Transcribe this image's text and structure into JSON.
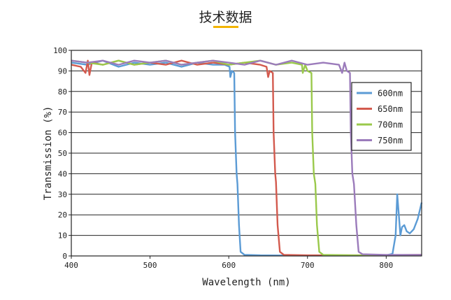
{
  "header": {
    "title": "技术数据",
    "accent_color": "#f2b400"
  },
  "chart_data": {
    "type": "line",
    "xlabel": "Wavelength (nm)",
    "ylabel": "Transmission (%)",
    "xlim": [
      400,
      845
    ],
    "ylim": [
      0,
      100
    ],
    "x_ticks": [
      400,
      500,
      600,
      700,
      800
    ],
    "y_ticks": [
      0,
      10,
      20,
      30,
      40,
      50,
      60,
      70,
      80,
      90,
      100
    ],
    "grid": "horizontal",
    "legend_position": "top-right",
    "series": [
      {
        "name": "600nm",
        "color": "#5b9bd5",
        "cutoff": 607,
        "points": [
          [
            400,
            94
          ],
          [
            420,
            93
          ],
          [
            440,
            95
          ],
          [
            460,
            92
          ],
          [
            480,
            94
          ],
          [
            500,
            93
          ],
          [
            520,
            94
          ],
          [
            540,
            92
          ],
          [
            560,
            94
          ],
          [
            580,
            93
          ],
          [
            595,
            93
          ],
          [
            601,
            92
          ],
          [
            602,
            87
          ],
          [
            604,
            90
          ],
          [
            607,
            89
          ],
          [
            608,
            60
          ],
          [
            610,
            40
          ],
          [
            611,
            35
          ],
          [
            613,
            15
          ],
          [
            615,
            2
          ],
          [
            620,
            0.5
          ],
          [
            640,
            0.3
          ],
          [
            700,
            0.2
          ],
          [
            760,
            0.2
          ],
          [
            800,
            0.3
          ],
          [
            808,
            1
          ],
          [
            812,
            10
          ],
          [
            814,
            30
          ],
          [
            816,
            20
          ],
          [
            818,
            10
          ],
          [
            820,
            14
          ],
          [
            823,
            15
          ],
          [
            826,
            12
          ],
          [
            830,
            11
          ],
          [
            835,
            13
          ],
          [
            840,
            18
          ],
          [
            845,
            26
          ]
        ]
      },
      {
        "name": "650nm",
        "color": "#d35a4e",
        "cutoff": 655,
        "points": [
          [
            400,
            93
          ],
          [
            412,
            92
          ],
          [
            418,
            89
          ],
          [
            421,
            95
          ],
          [
            423,
            88
          ],
          [
            426,
            94
          ],
          [
            440,
            93
          ],
          [
            460,
            95
          ],
          [
            480,
            93
          ],
          [
            500,
            94
          ],
          [
            520,
            93
          ],
          [
            540,
            95
          ],
          [
            560,
            93
          ],
          [
            580,
            94
          ],
          [
            600,
            93
          ],
          [
            620,
            94
          ],
          [
            640,
            93
          ],
          [
            648,
            92
          ],
          [
            650,
            87
          ],
          [
            652,
            90
          ],
          [
            656,
            89
          ],
          [
            657,
            60
          ],
          [
            659,
            40
          ],
          [
            660,
            36
          ],
          [
            662,
            15
          ],
          [
            665,
            2
          ],
          [
            670,
            0.5
          ],
          [
            700,
            0.3
          ],
          [
            780,
            0.3
          ],
          [
            845,
            0.5
          ]
        ]
      },
      {
        "name": "700nm",
        "color": "#9ac94b",
        "cutoff": 705,
        "points": [
          [
            400,
            95
          ],
          [
            420,
            94
          ],
          [
            440,
            93
          ],
          [
            460,
            95
          ],
          [
            480,
            93
          ],
          [
            500,
            94
          ],
          [
            520,
            95
          ],
          [
            540,
            93
          ],
          [
            560,
            94
          ],
          [
            580,
            95
          ],
          [
            600,
            93
          ],
          [
            620,
            94
          ],
          [
            640,
            95
          ],
          [
            660,
            93
          ],
          [
            680,
            94
          ],
          [
            693,
            93
          ],
          [
            694,
            89
          ],
          [
            697,
            93
          ],
          [
            700,
            90
          ],
          [
            705,
            89
          ],
          [
            706,
            60
          ],
          [
            708,
            40
          ],
          [
            710,
            35
          ],
          [
            712,
            15
          ],
          [
            715,
            2
          ],
          [
            720,
            0.5
          ],
          [
            760,
            0.3
          ],
          [
            845,
            0.4
          ]
        ]
      },
      {
        "name": "750nm",
        "color": "#9b7bbb",
        "cutoff": 754,
        "points": [
          [
            400,
            95
          ],
          [
            420,
            94
          ],
          [
            440,
            95
          ],
          [
            460,
            93
          ],
          [
            480,
            95
          ],
          [
            500,
            94
          ],
          [
            520,
            95
          ],
          [
            540,
            93
          ],
          [
            560,
            94
          ],
          [
            580,
            95
          ],
          [
            600,
            94
          ],
          [
            620,
            93
          ],
          [
            640,
            95
          ],
          [
            660,
            93
          ],
          [
            680,
            95
          ],
          [
            700,
            93
          ],
          [
            720,
            94
          ],
          [
            740,
            93
          ],
          [
            744,
            89
          ],
          [
            747,
            94
          ],
          [
            750,
            90
          ],
          [
            754,
            89
          ],
          [
            755,
            60
          ],
          [
            757,
            40
          ],
          [
            759,
            35
          ],
          [
            762,
            15
          ],
          [
            765,
            2
          ],
          [
            770,
            0.8
          ],
          [
            800,
            0.5
          ],
          [
            845,
            0.5
          ]
        ]
      }
    ]
  }
}
